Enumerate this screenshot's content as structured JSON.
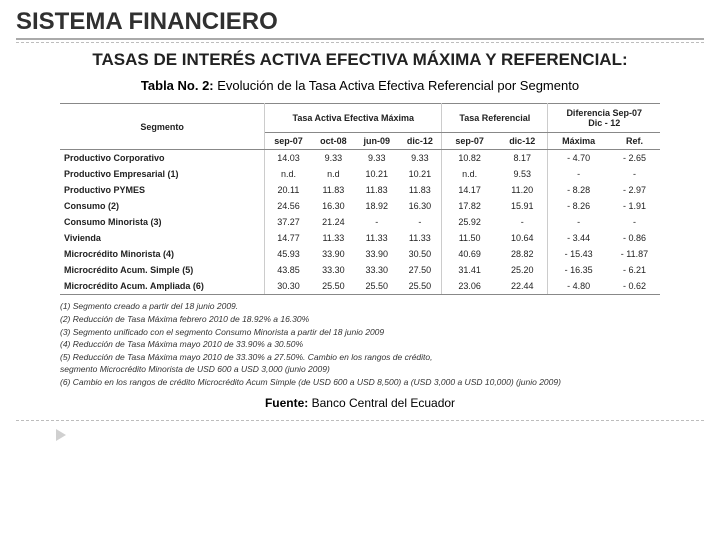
{
  "main_title": "SISTEMA FINANCIERO",
  "subtitle": "TASAS DE INTERÉS ACTIVA EFECTIVA MÁXIMA Y REFERENCIAL:",
  "table_title_bold": "Tabla No. 2:",
  "table_title_rest": " Evolución de la Tasa Activa Efectiva Referencial por Segmento",
  "headers": {
    "segmento": "Segmento",
    "max": "Tasa Activa Efectiva Máxima",
    "ref": "Tasa Referencial",
    "diff": "Diferencia Sep-07",
    "diff2": "Dic - 12",
    "sub": [
      "sep-07",
      "oct-08",
      "jun-09",
      "dic-12",
      "sep-07",
      "dic-12",
      "Máxima",
      "Ref."
    ]
  },
  "rows": [
    {
      "seg": "Productivo Corporativo",
      "c": [
        "14.03",
        "9.33",
        "9.33",
        "9.33",
        "10.82",
        "8.17",
        "- 4.70",
        "- 2.65"
      ]
    },
    {
      "seg": "Productivo Empresarial (1)",
      "c": [
        "n.d.",
        "n.d",
        "10.21",
        "10.21",
        "n.d.",
        "9.53",
        "-",
        "-"
      ]
    },
    {
      "seg": "Productivo PYMES",
      "c": [
        "20.11",
        "11.83",
        "11.83",
        "11.83",
        "14.17",
        "11.20",
        "- 8.28",
        "- 2.97"
      ]
    },
    {
      "seg": "Consumo (2)",
      "c": [
        "24.56",
        "16.30",
        "18.92",
        "16.30",
        "17.82",
        "15.91",
        "- 8.26",
        "- 1.91"
      ]
    },
    {
      "seg": "Consumo Minorista (3)",
      "c": [
        "37.27",
        "21.24",
        "-",
        "-",
        "25.92",
        "-",
        "-",
        "-"
      ]
    },
    {
      "seg": "Vivienda",
      "c": [
        "14.77",
        "11.33",
        "11.33",
        "11.33",
        "11.50",
        "10.64",
        "- 3.44",
        "- 0.86"
      ]
    },
    {
      "seg": "Microcrédito Minorista (4)",
      "c": [
        "45.93",
        "33.90",
        "33.90",
        "30.50",
        "40.69",
        "28.82",
        "- 15.43",
        "- 11.87"
      ]
    },
    {
      "seg": "Microcrédito Acum. Simple (5)",
      "c": [
        "43.85",
        "33.30",
        "33.30",
        "27.50",
        "31.41",
        "25.20",
        "- 16.35",
        "- 6.21"
      ]
    },
    {
      "seg": "Microcrédito Acum. Ampliada (6)",
      "c": [
        "30.30",
        "25.50",
        "25.50",
        "25.50",
        "23.06",
        "22.44",
        "- 4.80",
        "- 0.62"
      ]
    }
  ],
  "notes": [
    "(1) Segmento creado a partir del 18 junio 2009.",
    "(2) Reducción de Tasa Máxima febrero 2010 de 18.92% a 16.30%",
    "(3) Segmento unificado con el segmento Consumo Minorista a partir del 18 junio 2009",
    "(4) Reducción de Tasa Máxima mayo 2010 de 33.90% a 30.50%",
    "(5) Reducción de Tasa Máxima mayo 2010 de 33.30% a 27.50%. Cambio en los rangos de crédito,",
    "segmento Microcrédito Minorista de USD 600 a USD 3,000 (junio 2009)",
    "(6) Cambio en los rangos de crédito Microcrédito Acum Simple (de USD 600 a USD 8,500) a (USD 3,000 a USD 10,000) (junio 2009)"
  ],
  "source_bold": "Fuente:",
  "source_rest": " Banco Central del Ecuador"
}
